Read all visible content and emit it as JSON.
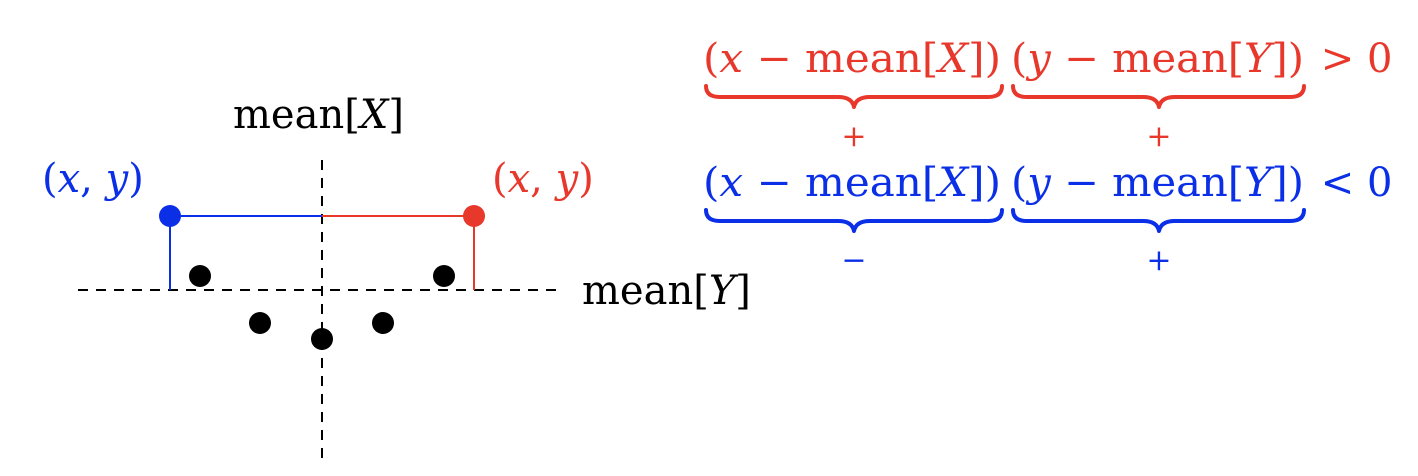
{
  "colors": {
    "red": "#e8382c",
    "blue": "#0a2fe6",
    "black": "#000000"
  },
  "diagram": {
    "axis_label_x": {
      "pre": "mean[",
      "var": "X",
      "post": "]"
    },
    "axis_label_y": {
      "pre": "mean[",
      "var": "Y",
      "post": "]"
    },
    "point_left": {
      "open": "(",
      "x": "x",
      "comma": ", ",
      "y": "y",
      "close": ")"
    },
    "point_right": {
      "open": "(",
      "x": "x",
      "comma": ", ",
      "y": "y",
      "close": ")"
    }
  },
  "equations": {
    "row1": {
      "term1": {
        "open": "(",
        "var": "x",
        "mid": " − mean[",
        "cap": "X",
        "close": "])"
      },
      "term2": {
        "open": "(",
        "var": "y",
        "mid": " − mean[",
        "cap": "Y",
        "close": "])"
      },
      "relation": " > 0",
      "sign1": "+",
      "sign2": "+"
    },
    "row2": {
      "term1": {
        "open": "(",
        "var": "x",
        "mid": " − mean[",
        "cap": "X",
        "close": "])"
      },
      "term2": {
        "open": "(",
        "var": "y",
        "mid": " − mean[",
        "cap": "Y",
        "close": "])"
      },
      "relation": " < 0",
      "sign1": "−",
      "sign2": "+"
    }
  }
}
